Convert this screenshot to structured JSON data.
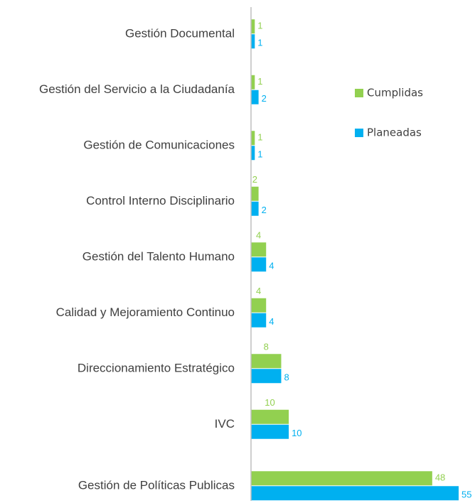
{
  "chart_data": {
    "type": "bar",
    "orientation": "horizontal",
    "categories": [
      "Gestión Documental",
      "Gestión del Servicio a la Ciudadanía",
      "Gestión de Comunicaciones",
      "Control Interno Disciplinario",
      "Gestión del Talento Humano",
      "Calidad y Mejoramiento Continuo",
      "Direccionamiento Estratégico",
      "IVC",
      "Gestión de Políticas Publicas"
    ],
    "series": [
      {
        "name": "Cumplidas",
        "color": "#92d050",
        "values": [
          1,
          1,
          1,
          2,
          4,
          4,
          8,
          10,
          48
        ]
      },
      {
        "name": "Planeadas",
        "color": "#00b0f0",
        "values": [
          1,
          2,
          1,
          2,
          4,
          4,
          8,
          10,
          55
        ]
      }
    ],
    "xlim": [
      0,
      55
    ],
    "legend": "right"
  }
}
